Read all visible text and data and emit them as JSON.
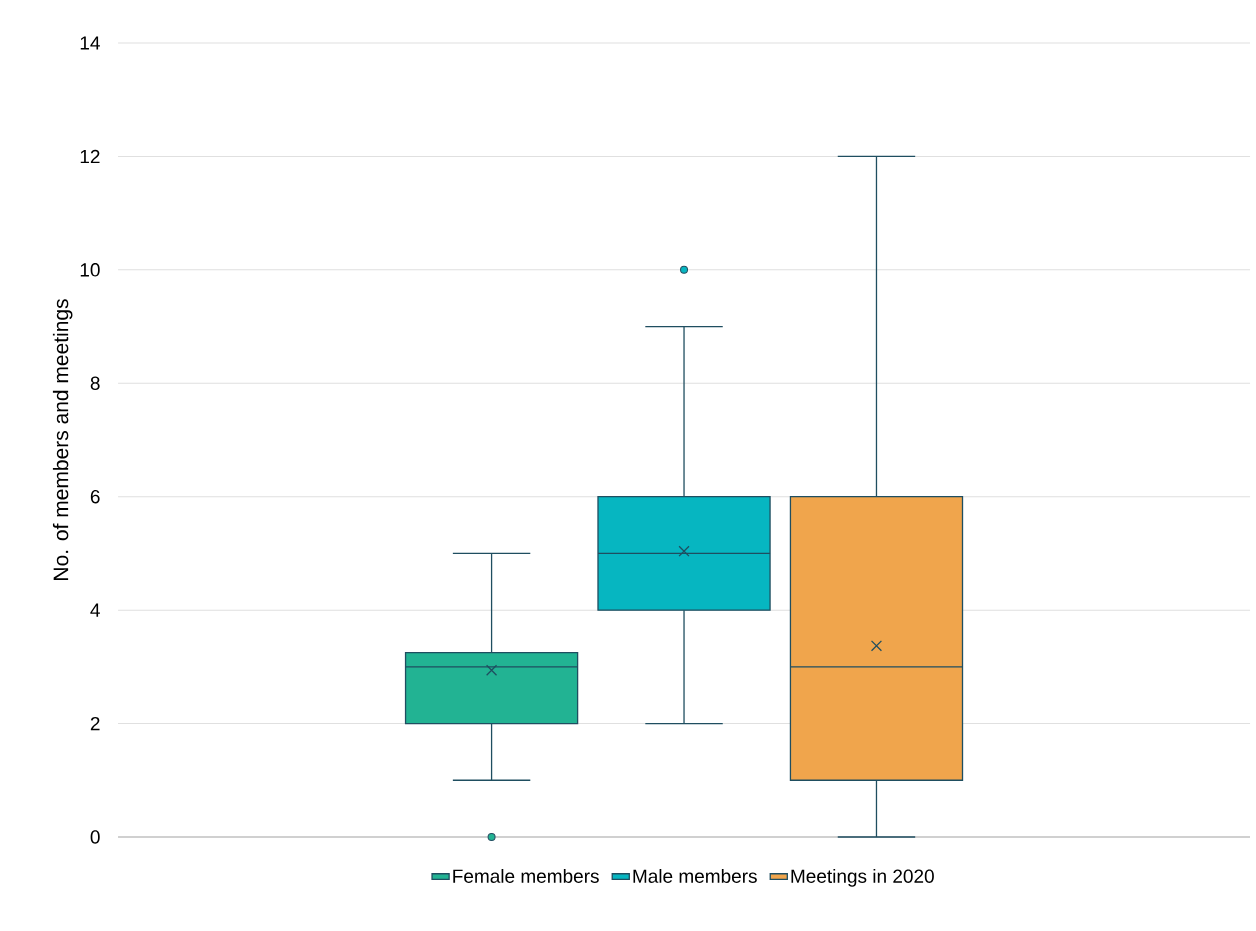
{
  "chart_data": {
    "type": "box",
    "ylabel": "No. of members and meetings",
    "categories": [
      null
    ],
    "series": [
      {
        "name": "Female members",
        "color": "#22b393",
        "boxes": [
          {
            "low": 1,
            "q1": 2,
            "median": 3,
            "q3": 3.25,
            "high": 5,
            "mean": 2.94,
            "outliers": [
              0
            ]
          }
        ]
      },
      {
        "name": "Male members",
        "color": "#06b6c1",
        "boxes": [
          {
            "low": 2,
            "q1": 4,
            "median": 5,
            "q3": 6,
            "high": 9,
            "mean": 5.04,
            "outliers": [
              10
            ]
          }
        ]
      },
      {
        "name": "Meetings in 2020",
        "color": "#f0a54c",
        "boxes": [
          {
            "low": 0,
            "q1": 1,
            "median": 3,
            "q3": 6,
            "high": 12,
            "mean": 3.37
          }
        ]
      }
    ],
    "ylim": [
      0,
      14
    ],
    "yticks": [
      0,
      2,
      4,
      6,
      8,
      10,
      12,
      14
    ],
    "grid": "y",
    "legend": "bottom",
    "tick_labels": "y"
  }
}
